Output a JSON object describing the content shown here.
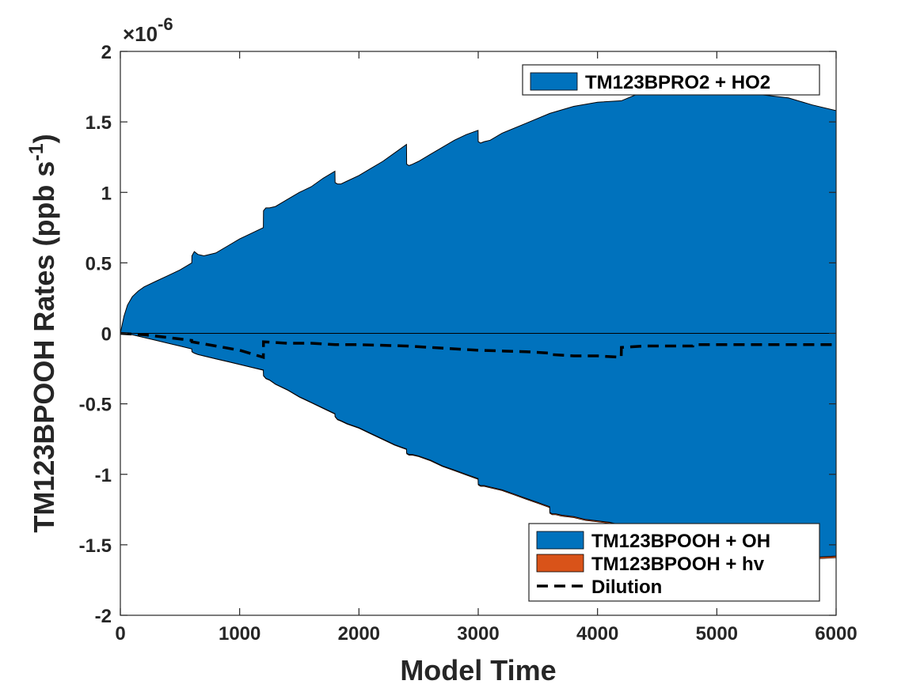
{
  "chart_data": {
    "type": "area",
    "xlabel": "Model Time",
    "ylabel": "TM123BPOOH Rates (ppb s",
    "ylabel_sup": "-1",
    "ylabel_close": ")",
    "y_multiplier": "×10",
    "y_multiplier_exp": "-6",
    "xlim": [
      0,
      6000
    ],
    "ylim": [
      -2,
      2
    ],
    "xticks": [
      0,
      1000,
      2000,
      3000,
      4000,
      5000,
      6000
    ],
    "xtick_labels": [
      "0",
      "1000",
      "2000",
      "3000",
      "4000",
      "5000",
      "6000"
    ],
    "yticks": [
      2,
      1.5,
      1,
      0.5,
      0,
      -0.5,
      -1,
      -1.5,
      -2
    ],
    "ytick_labels": [
      "2",
      "1.5",
      "1",
      "0.5",
      "0",
      "-0.5",
      "-1",
      "-1.5",
      "-2"
    ],
    "grid": false,
    "series": [
      {
        "name": "TM123BPRO2 + HO2",
        "kind": "area",
        "color": "#0072BD",
        "x": [
          0,
          30,
          60,
          100,
          150,
          200,
          300,
          400,
          500,
          599,
          600,
          620,
          650,
          700,
          800,
          900,
          1000,
          1100,
          1199,
          1200,
          1220,
          1250,
          1300,
          1400,
          1500,
          1600,
          1700,
          1799,
          1800,
          1820,
          1850,
          1900,
          2000,
          2100,
          2200,
          2300,
          2399,
          2400,
          2420,
          2450,
          2500,
          2600,
          2700,
          2800,
          2900,
          2999,
          3000,
          3020,
          3050,
          3100,
          3200,
          3400,
          3600,
          3800,
          4000,
          4200,
          4400,
          4600,
          4800,
          5000,
          5200,
          5400,
          5600,
          5800,
          6000
        ],
        "values": [
          0.0,
          0.12,
          0.2,
          0.26,
          0.3,
          0.33,
          0.37,
          0.41,
          0.45,
          0.5,
          0.55,
          0.58,
          0.56,
          0.55,
          0.57,
          0.62,
          0.67,
          0.71,
          0.75,
          0.87,
          0.89,
          0.89,
          0.9,
          0.95,
          1.0,
          1.04,
          1.1,
          1.15,
          1.07,
          1.06,
          1.06,
          1.08,
          1.12,
          1.17,
          1.22,
          1.28,
          1.34,
          1.2,
          1.19,
          1.2,
          1.22,
          1.27,
          1.32,
          1.37,
          1.41,
          1.44,
          1.36,
          1.35,
          1.36,
          1.37,
          1.42,
          1.49,
          1.56,
          1.61,
          1.64,
          1.65,
          1.72,
          1.73,
          1.74,
          1.73,
          1.71,
          1.69,
          1.67,
          1.62,
          1.58
        ]
      },
      {
        "name": "TM123BPOOH + OH",
        "kind": "area",
        "color": "#0072BD",
        "x": [
          0,
          100,
          200,
          300,
          400,
          500,
          599,
          600,
          620,
          650,
          700,
          800,
          900,
          1000,
          1100,
          1199,
          1200,
          1220,
          1250,
          1300,
          1400,
          1500,
          1600,
          1700,
          1799,
          1800,
          1820,
          1850,
          1900,
          2000,
          2100,
          2200,
          2300,
          2399,
          2400,
          2420,
          2450,
          2500,
          2600,
          2700,
          2800,
          2900,
          2999,
          3000,
          3020,
          3050,
          3100,
          3200,
          3300,
          3400,
          3500,
          3599,
          3600,
          3620,
          3650,
          3700,
          3800,
          3900,
          4000,
          4100,
          4199,
          4200,
          4220,
          4250,
          4300,
          4400,
          4500,
          4600,
          4700,
          4800,
          5000,
          5200,
          5400,
          5600,
          5800,
          6000
        ],
        "values": [
          0.0,
          -0.01,
          -0.03,
          -0.05,
          -0.07,
          -0.09,
          -0.11,
          -0.13,
          -0.14,
          -0.15,
          -0.16,
          -0.18,
          -0.2,
          -0.22,
          -0.24,
          -0.26,
          -0.3,
          -0.32,
          -0.33,
          -0.36,
          -0.4,
          -0.45,
          -0.49,
          -0.53,
          -0.57,
          -0.59,
          -0.61,
          -0.62,
          -0.64,
          -0.67,
          -0.71,
          -0.75,
          -0.79,
          -0.82,
          -0.85,
          -0.86,
          -0.86,
          -0.87,
          -0.9,
          -0.94,
          -0.97,
          -1.0,
          -1.03,
          -1.07,
          -1.08,
          -1.08,
          -1.09,
          -1.11,
          -1.14,
          -1.17,
          -1.2,
          -1.23,
          -1.27,
          -1.28,
          -1.28,
          -1.29,
          -1.3,
          -1.32,
          -1.33,
          -1.34,
          -1.36,
          -1.39,
          -1.41,
          -1.41,
          -1.42,
          -1.44,
          -1.46,
          -1.48,
          -1.5,
          -1.52,
          -1.54,
          -1.56,
          -1.57,
          -1.58,
          -1.59,
          -1.58
        ]
      },
      {
        "name": "TM123BPOOH + hv",
        "kind": "area",
        "color": "#D95319",
        "x": [
          0,
          1000,
          2000,
          3000,
          4000,
          5000,
          6000
        ],
        "values": [
          0.0,
          -0.002,
          -0.004,
          -0.006,
          -0.008,
          -0.01,
          -0.012
        ]
      },
      {
        "name": "Dilution",
        "kind": "line",
        "color": "#000000",
        "x": [
          0,
          200,
          400,
          599,
          600,
          800,
          1000,
          1199,
          1200,
          1400,
          1600,
          1800,
          2000,
          2400,
          2800,
          3000,
          3400,
          3599,
          3600,
          3800,
          4000,
          4199,
          4200,
          4400,
          4600,
          4799,
          4800,
          5200,
          5600,
          6000
        ],
        "values": [
          0.0,
          -0.01,
          -0.03,
          -0.05,
          -0.06,
          -0.09,
          -0.12,
          -0.17,
          -0.06,
          -0.07,
          -0.07,
          -0.08,
          -0.08,
          -0.09,
          -0.11,
          -0.12,
          -0.13,
          -0.14,
          -0.15,
          -0.16,
          -0.16,
          -0.17,
          -0.1,
          -0.09,
          -0.09,
          -0.09,
          -0.08,
          -0.08,
          -0.08,
          -0.08
        ]
      }
    ],
    "legends": [
      {
        "position": "top-right",
        "entries": [
          "TM123BPRO2 + HO2"
        ]
      },
      {
        "position": "bottom-right",
        "entries": [
          "TM123BPOOH + OH",
          "TM123BPOOH + hv",
          "Dilution"
        ]
      }
    ]
  }
}
